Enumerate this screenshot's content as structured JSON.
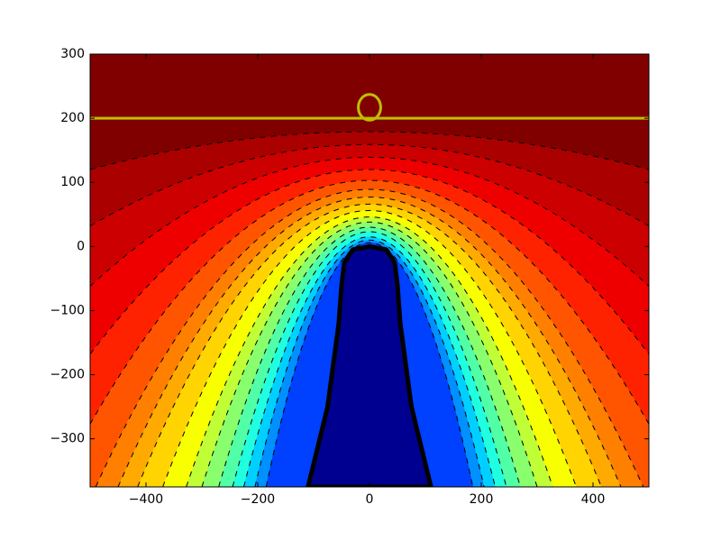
{
  "chart_data": {
    "type": "contour",
    "xlim": [
      -500,
      500
    ],
    "ylim": [
      -375,
      300
    ],
    "xticks": [
      {
        "value": -400,
        "label": "−400"
      },
      {
        "value": -200,
        "label": "−200"
      },
      0,
      200,
      400
    ],
    "yticks": [
      {
        "value": -300,
        "label": "−300"
      },
      {
        "value": -200,
        "label": "−200"
      },
      {
        "value": -100,
        "label": "−100"
      },
      0,
      100,
      200,
      300
    ],
    "background": "#800000",
    "contours": [
      {
        "apex": 179,
        "end": [
          500,
          120
        ],
        "color": "#aa0000"
      },
      {
        "apex": 159,
        "end": [
          500,
          32
        ],
        "color": "#cc0000"
      },
      {
        "apex": 139,
        "end": [
          500,
          -62
        ],
        "color": "#ee0000"
      },
      {
        "apex": 120,
        "end": [
          500,
          -168
        ],
        "color": "#ff2200"
      },
      {
        "apex": 103,
        "end": [
          500,
          -277
        ],
        "color": "#ff5500"
      },
      {
        "apex": 89,
        "end": [
          490,
          -375
        ],
        "color": "#ff8000"
      },
      {
        "apex": 77,
        "end": [
          450,
          -375
        ],
        "color": "#ffaa00"
      },
      {
        "apex": 66,
        "end": [
          415,
          -375
        ],
        "color": "#ffd400"
      },
      {
        "apex": 56,
        "end": [
          370,
          -375
        ],
        "color": "#f8ff00"
      },
      {
        "apex": 46,
        "end": [
          328,
          -375
        ],
        "color": "#c0ff36"
      },
      {
        "apex": 38,
        "end": [
          300,
          -375
        ],
        "color": "#8aff6d"
      },
      {
        "apex": 30,
        "end": [
          270,
          -375
        ],
        "color": "#50ffa6"
      },
      {
        "apex": 23,
        "end": [
          245,
          -375
        ],
        "color": "#20ffe0"
      },
      {
        "apex": 15,
        "end": [
          225,
          -375
        ],
        "color": "#00d0ff"
      },
      {
        "apex": 10,
        "end": [
          205,
          -375
        ],
        "color": "#0090ff"
      },
      {
        "apex": 6,
        "end": [
          185,
          -375
        ],
        "color": "#0040ff"
      }
    ],
    "tip": {
      "x": [
        -110,
        -75,
        -55,
        -50,
        -45,
        -30,
        0,
        30,
        45,
        50,
        55,
        75,
        110
      ],
      "y": [
        -375,
        -250,
        -120,
        -60,
        -25,
        -5,
        0,
        -5,
        -25,
        -60,
        -120,
        -250,
        -375
      ],
      "color": "#000090",
      "edge_color": "#000000"
    },
    "line": {
      "y": 200,
      "color": "#bfbf00"
    },
    "marker": {
      "x": 0,
      "y": 217,
      "r": 20,
      "color": "#bfbf00"
    }
  }
}
